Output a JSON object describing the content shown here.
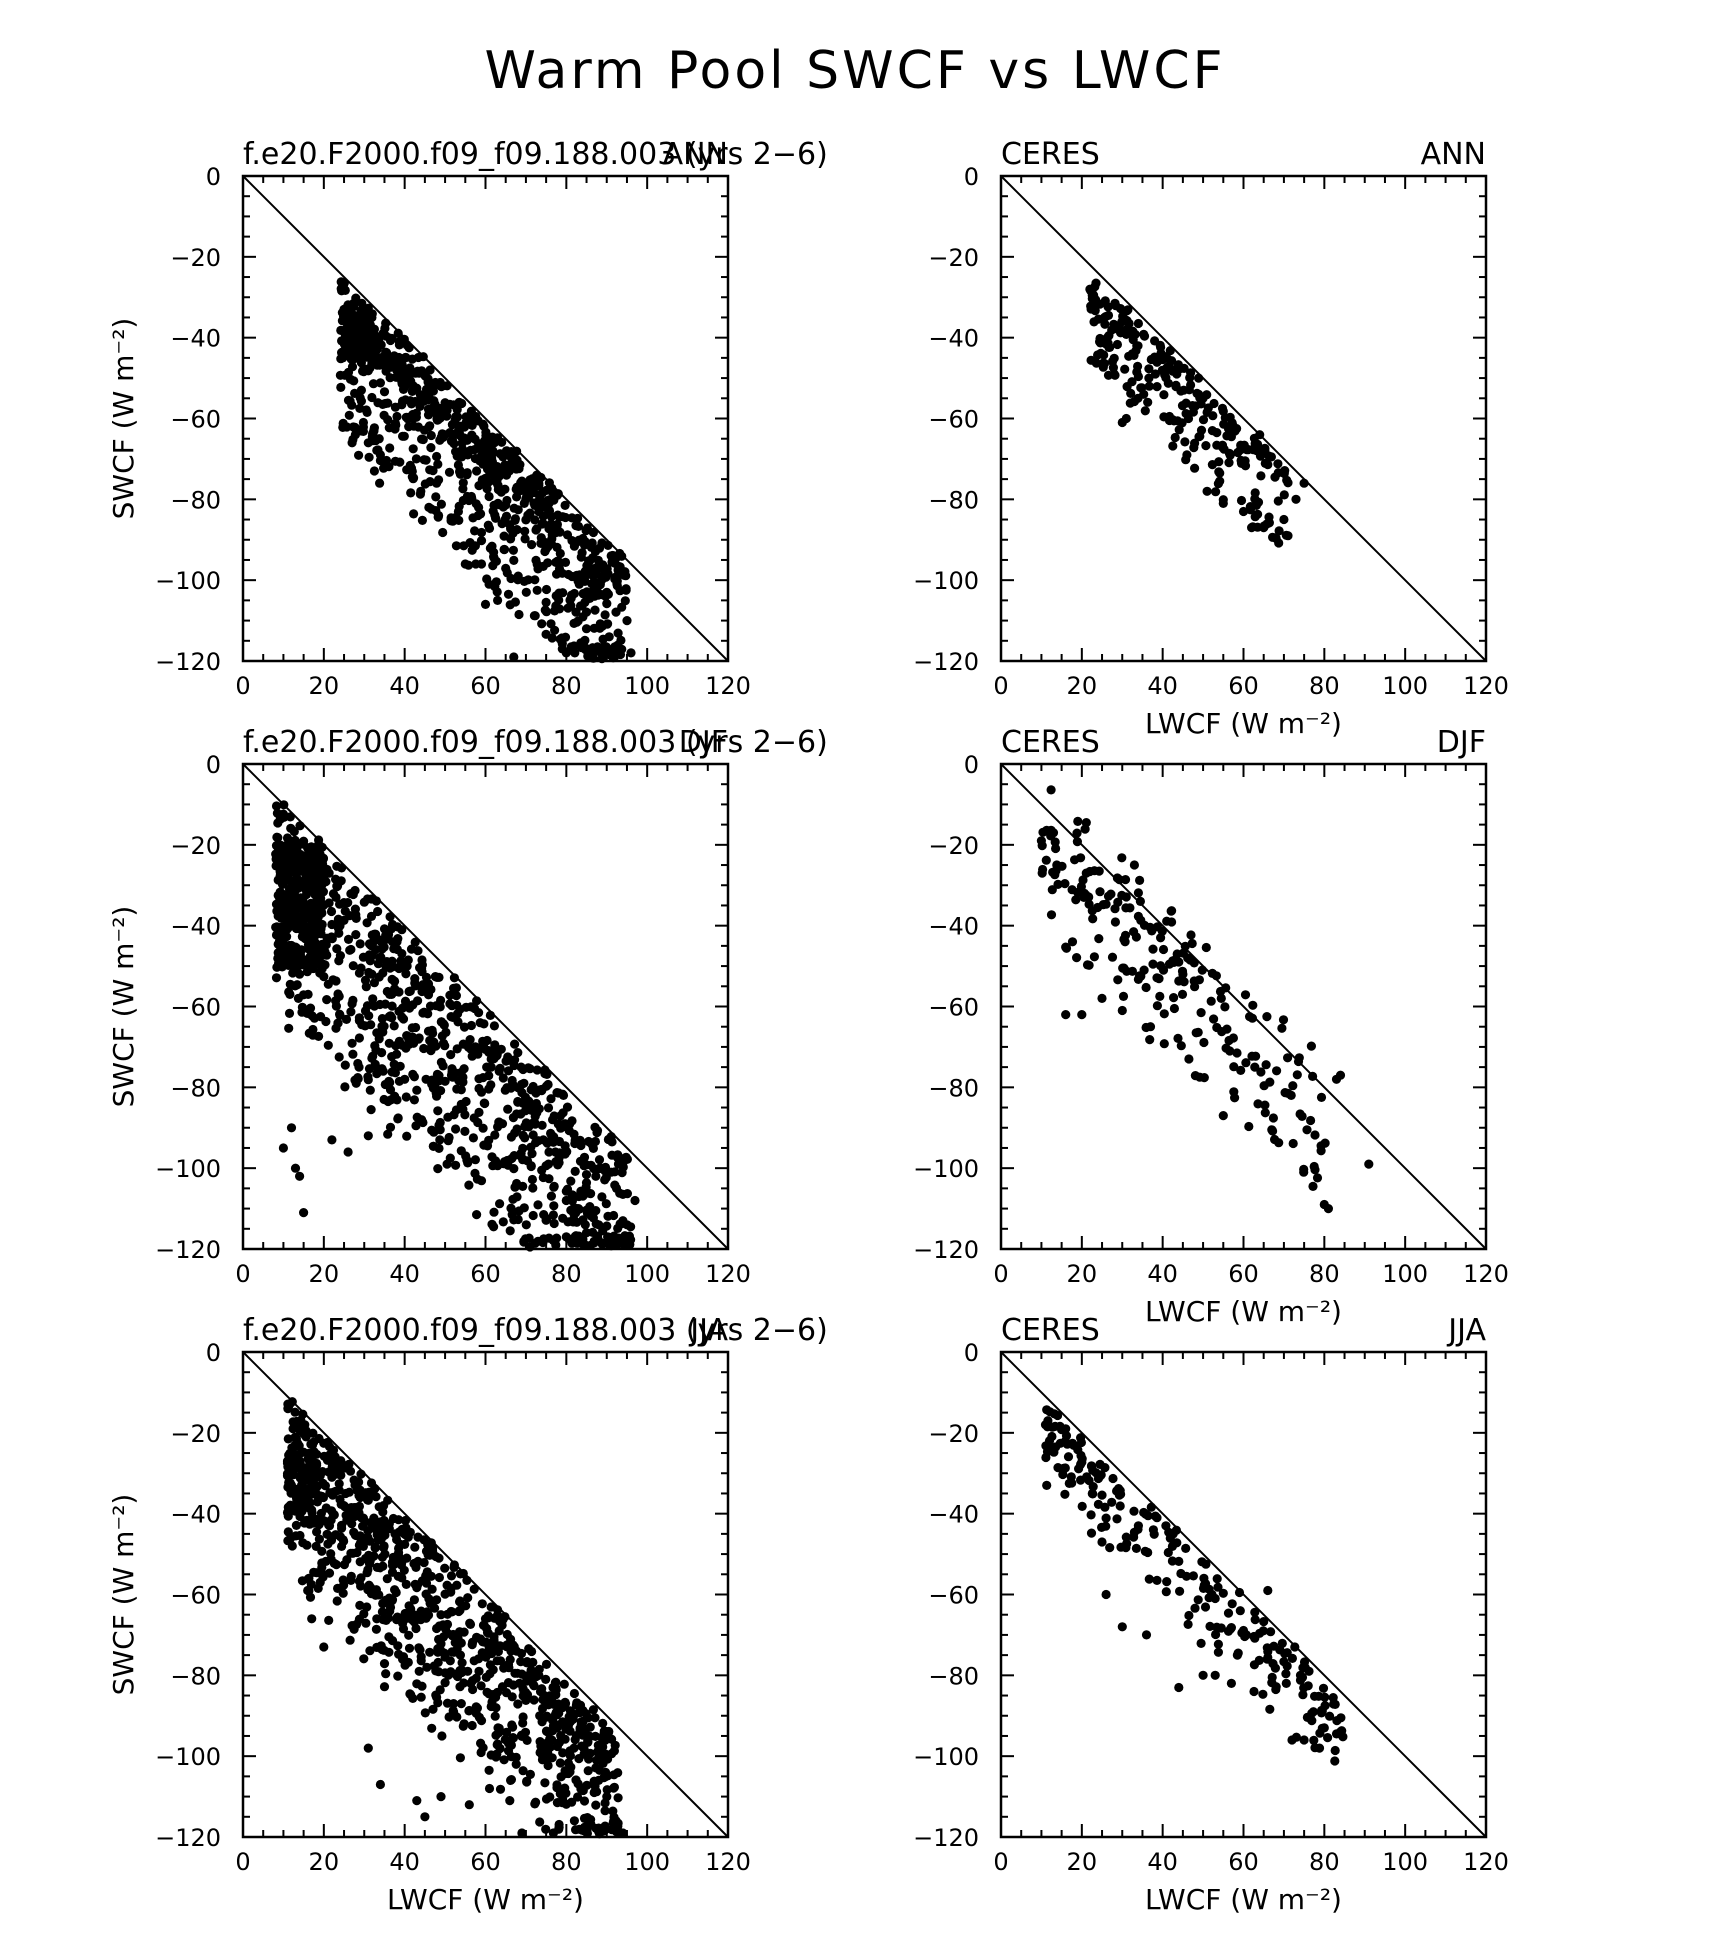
{
  "figure": {
    "title": "Warm Pool SWCF vs LWCF"
  },
  "chart_data": [
    {
      "type": "scatter",
      "title_left": "f.e20.F2000.f09_f09.188.003 (yrs 2−6)",
      "title_right": "ANN",
      "xlabel": "",
      "ylabel": "SWCF (W m⁻²)",
      "xlim": [
        0,
        120
      ],
      "ylim": [
        -120,
        0
      ],
      "xticks": [
        0,
        20,
        40,
        60,
        80,
        100,
        120
      ],
      "yticks": [
        0,
        -20,
        -40,
        -60,
        -80,
        -100,
        -120
      ],
      "reference_line": "y = -x",
      "cloud": {
        "n": 950,
        "seed": 11,
        "x_min": 24,
        "x_max": 95,
        "upper_offset": [
          0,
          10
        ],
        "spread": 34,
        "bias": 2.2,
        "head": 0.09,
        "head_x": [
          24,
          32
        ],
        "head_y": [
          -34,
          -45
        ]
      },
      "points": [
        [
          25,
          -33
        ],
        [
          27,
          -66
        ],
        [
          31,
          -66
        ],
        [
          34,
          -69
        ],
        [
          55,
          -96
        ],
        [
          60,
          -106
        ],
        [
          63,
          -105
        ],
        [
          67,
          -119
        ],
        [
          79,
          -117
        ],
        [
          80,
          -118
        ],
        [
          85,
          -112
        ],
        [
          87,
          -104
        ],
        [
          90,
          -103
        ],
        [
          96,
          -118
        ],
        [
          95,
          -110
        ],
        [
          41,
          -62
        ],
        [
          44,
          -78
        ],
        [
          46,
          -82
        ]
      ]
    },
    {
      "type": "scatter",
      "title_left": "CERES",
      "title_right": "ANN",
      "xlabel": "LWCF (W m⁻²)",
      "ylabel": "",
      "xlim": [
        0,
        120
      ],
      "ylim": [
        -120,
        0
      ],
      "xticks": [
        0,
        20,
        40,
        60,
        80,
        100,
        120
      ],
      "yticks": [
        0,
        -20,
        -40,
        -60,
        -80,
        -100,
        -120
      ],
      "reference_line": "y = -x",
      "cloud": {
        "n": 260,
        "seed": 23,
        "x_min": 22,
        "x_max": 71,
        "upper_offset": [
          1,
          7
        ],
        "spread": 20,
        "bias": 2.0,
        "head": 0,
        "head_x": [
          0,
          0
        ],
        "head_y": [
          0,
          0
        ]
      },
      "points": [
        [
          22,
          -28
        ],
        [
          30,
          -61
        ],
        [
          31,
          -60
        ],
        [
          28,
          -49
        ],
        [
          46,
          -69
        ],
        [
          51,
          -78
        ],
        [
          55,
          -81
        ],
        [
          62,
          -87
        ],
        [
          65,
          -87
        ],
        [
          71,
          -89
        ],
        [
          70,
          -85
        ],
        [
          75,
          -76
        ],
        [
          73,
          -80
        ],
        [
          64,
          -64
        ]
      ]
    },
    {
      "type": "scatter",
      "title_left": "f.e20.F2000.f09_f09.188.003 (yrs 2−6)",
      "title_right": "DJF",
      "xlabel": "",
      "ylabel": "SWCF (W m⁻²)",
      "xlim": [
        0,
        120
      ],
      "ylim": [
        -120,
        0
      ],
      "xticks": [
        0,
        20,
        40,
        60,
        80,
        100,
        120
      ],
      "yticks": [
        0,
        -20,
        -40,
        -60,
        -80,
        -100,
        -120
      ],
      "reference_line": "y = -x",
      "cloud": {
        "n": 1200,
        "seed": 37,
        "x_min": 8,
        "x_max": 96,
        "upper_offset": [
          0,
          12
        ],
        "spread": 45,
        "bias": 1.6,
        "head": 0.25,
        "head_x": [
          8,
          20
        ],
        "head_y": [
          -20,
          -50
        ]
      },
      "points": [
        [
          11,
          -20
        ],
        [
          10,
          -95
        ],
        [
          13,
          -100
        ],
        [
          14,
          -102
        ],
        [
          15,
          -111
        ],
        [
          12,
          -90
        ],
        [
          22,
          -93
        ],
        [
          26,
          -96
        ],
        [
          31,
          -92
        ],
        [
          28,
          -79
        ],
        [
          85,
          -116
        ],
        [
          88,
          -114
        ],
        [
          92,
          -119
        ],
        [
          95,
          -114
        ],
        [
          97,
          -108
        ],
        [
          80,
          -108
        ],
        [
          83,
          -110
        ]
      ]
    },
    {
      "type": "scatter",
      "title_left": "CERES",
      "title_right": "DJF",
      "xlabel": "LWCF (W m⁻²)",
      "ylabel": "",
      "xlim": [
        0,
        120
      ],
      "ylim": [
        -120,
        0
      ],
      "xticks": [
        0,
        20,
        40,
        60,
        80,
        100,
        120
      ],
      "yticks": [
        0,
        -20,
        -40,
        -60,
        -80,
        -100,
        -120
      ],
      "reference_line": "y = -x",
      "cloud": {
        "n": 220,
        "seed": 53,
        "x_min": 10,
        "x_max": 82,
        "upper_offset": [
          -8,
          10
        ],
        "spread": 22,
        "bias": 1.3,
        "head": 0,
        "head_x": [
          0,
          0
        ],
        "head_y": [
          0,
          0
        ]
      },
      "points": [
        [
          10,
          -19
        ],
        [
          13,
          -17
        ],
        [
          16,
          -62
        ],
        [
          20,
          -62
        ],
        [
          25,
          -58
        ],
        [
          30,
          -61
        ],
        [
          37,
          -65
        ],
        [
          55,
          -87
        ],
        [
          81,
          -110
        ],
        [
          80,
          -109
        ],
        [
          91,
          -99
        ],
        [
          83,
          -78
        ],
        [
          84,
          -77
        ],
        [
          33,
          -25
        ]
      ]
    },
    {
      "type": "scatter",
      "title_left": "f.e20.F2000.f09_f09.188.003 (yrs 2−6)",
      "title_right": "JJA",
      "xlabel": "LWCF (W m⁻²)",
      "ylabel": "SWCF (W m⁻²)",
      "xlim": [
        0,
        120
      ],
      "ylim": [
        -120,
        0
      ],
      "xticks": [
        0,
        20,
        40,
        60,
        80,
        100,
        120
      ],
      "yticks": [
        0,
        -20,
        -40,
        -60,
        -80,
        -100,
        -120
      ],
      "reference_line": "y = -x",
      "cloud": {
        "n": 1000,
        "seed": 71,
        "x_min": 11,
        "x_max": 93,
        "upper_offset": [
          0,
          12
        ],
        "spread": 38,
        "bias": 2.0,
        "head": 0.06,
        "head_x": [
          11,
          18
        ],
        "head_y": [
          -27,
          -40
        ]
      },
      "points": [
        [
          11,
          -27
        ],
        [
          12,
          -28
        ],
        [
          16,
          -59
        ],
        [
          17,
          -66
        ],
        [
          20,
          -73
        ],
        [
          31,
          -98
        ],
        [
          34,
          -107
        ],
        [
          43,
          -111
        ],
        [
          45,
          -115
        ],
        [
          49,
          -110
        ],
        [
          56,
          -112
        ],
        [
          61,
          -108
        ],
        [
          66,
          -111
        ],
        [
          69,
          -119
        ],
        [
          82,
          -116
        ],
        [
          88,
          -106
        ],
        [
          90,
          -110
        ],
        [
          94,
          -119
        ],
        [
          89,
          -118
        ]
      ]
    },
    {
      "type": "scatter",
      "title_left": "CERES",
      "title_right": "JJA",
      "xlabel": "LWCF (W m⁻²)",
      "ylabel": "",
      "xlim": [
        0,
        120
      ],
      "ylim": [
        -120,
        0
      ],
      "xticks": [
        0,
        20,
        40,
        60,
        80,
        100,
        120
      ],
      "yticks": [
        0,
        -20,
        -40,
        -60,
        -80,
        -100,
        -120
      ],
      "reference_line": "y = -x",
      "cloud": {
        "n": 230,
        "seed": 89,
        "x_min": 11,
        "x_max": 85,
        "upper_offset": [
          0,
          7
        ],
        "spread": 18,
        "bias": 1.7,
        "head": 0,
        "head_x": [
          0,
          0
        ],
        "head_y": [
          0,
          0
        ]
      },
      "points": [
        [
          11,
          -18
        ],
        [
          12,
          -22
        ],
        [
          16,
          -19
        ],
        [
          25,
          -47
        ],
        [
          26,
          -60
        ],
        [
          30,
          -68
        ],
        [
          36,
          -70
        ],
        [
          44,
          -83
        ],
        [
          50,
          -80
        ],
        [
          53,
          -80
        ],
        [
          57,
          -82
        ],
        [
          72,
          -96
        ],
        [
          75,
          -96
        ],
        [
          80,
          -93
        ],
        [
          84,
          -94
        ],
        [
          66,
          -59
        ]
      ]
    }
  ]
}
